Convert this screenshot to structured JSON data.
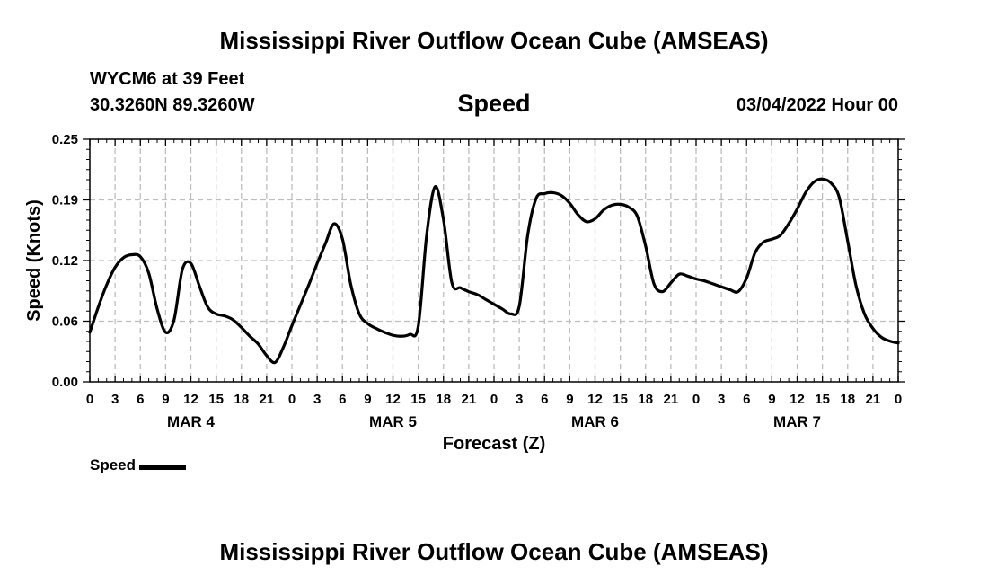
{
  "header": {
    "title": "Mississippi River Outflow Ocean Cube (AMSEAS)",
    "station": "WYCM6 at 39 Feet",
    "coords": "30.3260N  89.3260W",
    "variable": "Speed",
    "datetime": "03/04/2022 Hour 00"
  },
  "footer": {
    "title": "Mississippi River Outflow Ocean Cube (AMSEAS)"
  },
  "legend": {
    "label": "Speed",
    "color": "#000000"
  },
  "chart_data": {
    "type": "line",
    "title": "Speed",
    "xlabel": "Forecast (Z)",
    "ylabel": "Speed (Knots)",
    "ylim": [
      0,
      0.25
    ],
    "yticks": [
      "0.00",
      "0.06",
      "0.12",
      "0.19",
      "0.25"
    ],
    "xlim": [
      0,
      96
    ],
    "grid": true,
    "legend_position": "bottom-left",
    "x_tick_labels": [
      "0",
      "3",
      "6",
      "9",
      "12",
      "15",
      "18",
      "21",
      "0",
      "3",
      "6",
      "9",
      "12",
      "15",
      "18",
      "21",
      "0",
      "3",
      "6",
      "9",
      "12",
      "15",
      "18",
      "21",
      "0",
      "3",
      "6",
      "9",
      "12",
      "15",
      "18",
      "21",
      "0"
    ],
    "day_labels": [
      {
        "label": "MAR 4",
        "hour": 12
      },
      {
        "label": "MAR 5",
        "hour": 36
      },
      {
        "label": "MAR 6",
        "hour": 60
      },
      {
        "label": "MAR 7",
        "hour": 84
      }
    ],
    "series": [
      {
        "name": "Speed",
        "color": "#000000",
        "x": [
          0,
          1,
          2,
          3,
          4,
          5,
          6,
          7,
          8,
          9,
          10,
          11,
          12,
          13,
          14,
          15,
          16,
          17,
          18,
          19,
          20,
          21,
          22,
          23,
          24,
          25,
          26,
          27,
          28,
          29,
          30,
          31,
          32,
          33,
          34,
          35,
          36,
          37,
          38,
          39,
          40,
          41,
          42,
          43,
          44,
          45,
          46,
          47,
          48,
          49,
          50,
          51,
          52,
          53,
          54,
          55,
          56,
          57,
          58,
          59,
          60,
          61,
          62,
          63,
          64,
          65,
          66,
          67,
          68,
          69,
          70,
          71,
          72,
          73,
          74,
          75,
          76,
          77,
          78,
          79,
          80,
          81,
          82,
          83,
          84,
          85,
          86,
          87,
          88,
          89,
          90,
          91,
          92,
          93,
          94,
          95,
          96
        ],
        "y": [
          0.051,
          0.077,
          0.1,
          0.118,
          0.128,
          0.131,
          0.129,
          0.112,
          0.075,
          0.051,
          0.064,
          0.116,
          0.122,
          0.099,
          0.077,
          0.07,
          0.068,
          0.064,
          0.056,
          0.047,
          0.039,
          0.027,
          0.02,
          0.036,
          0.058,
          0.079,
          0.1,
          0.122,
          0.143,
          0.163,
          0.147,
          0.1,
          0.07,
          0.06,
          0.055,
          0.051,
          0.048,
          0.047,
          0.049,
          0.057,
          0.151,
          0.201,
          0.167,
          0.102,
          0.097,
          0.093,
          0.09,
          0.085,
          0.08,
          0.075,
          0.07,
          0.078,
          0.151,
          0.189,
          0.194,
          0.195,
          0.192,
          0.184,
          0.172,
          0.165,
          0.168,
          0.177,
          0.182,
          0.183,
          0.18,
          0.171,
          0.14,
          0.101,
          0.093,
          0.102,
          0.111,
          0.109,
          0.106,
          0.104,
          0.101,
          0.098,
          0.095,
          0.093,
          0.107,
          0.133,
          0.144,
          0.147,
          0.151,
          0.163,
          0.178,
          0.195,
          0.206,
          0.209,
          0.205,
          0.19,
          0.145,
          0.099,
          0.07,
          0.055,
          0.046,
          0.042,
          0.04
        ]
      }
    ]
  }
}
